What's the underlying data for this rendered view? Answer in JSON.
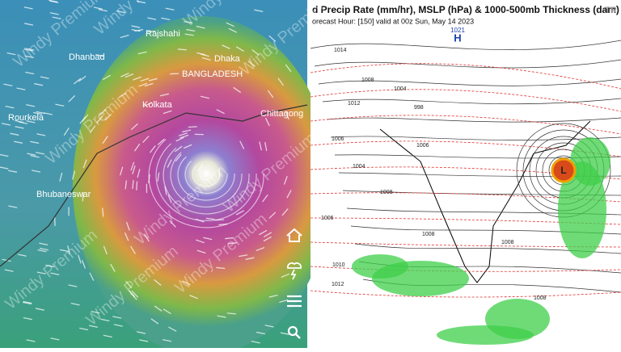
{
  "left_map": {
    "watermark": "Windy Premium",
    "cities": [
      "Rajshahi",
      "Dhanbad",
      "Dhaka",
      "BANGLADESH",
      "Kolkata",
      "Rourkela",
      "Chittagong",
      "Bhubaneswar"
    ]
  },
  "right_map": {
    "title_line1": "d Precip Rate (mm/hr), MSLP (hPa) & 1000-500mb Thickness (dam)",
    "title_line2": "orecast Hour: [150]  valid at 00z Sun, May 14 2023",
    "corner": "TR",
    "high_label": "H",
    "high_value": "1021",
    "low_label": "L",
    "isobar_labels": [
      "1014",
      "1008",
      "1012",
      "1004",
      "998",
      "1006",
      "1006",
      "1004",
      "1008",
      "1006",
      "1008",
      "1010",
      "1012",
      "1008",
      "1008"
    ]
  }
}
